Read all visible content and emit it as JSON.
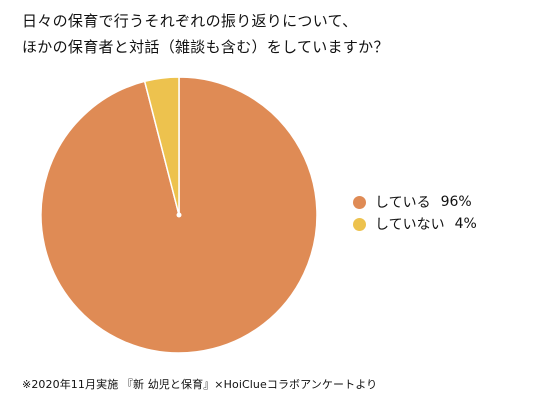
{
  "chart_data": {
    "type": "pie",
    "title_lines": [
      "日々の保育で行うそれぞれの振り返りについて、",
      "ほかの保育者と対話（雑談も含む）をしていますか？"
    ],
    "slices": [
      {
        "label": "している",
        "value": 96,
        "value_label": "96%",
        "color": "#DF8B55"
      },
      {
        "label": "していない",
        "value": 4,
        "value_label": "4%",
        "color": "#EDC24E"
      }
    ],
    "legend_position": "right"
  },
  "footnote": "※2020年11月実施 『新 幼児と保育』×HoiClueコラボアンケートより"
}
